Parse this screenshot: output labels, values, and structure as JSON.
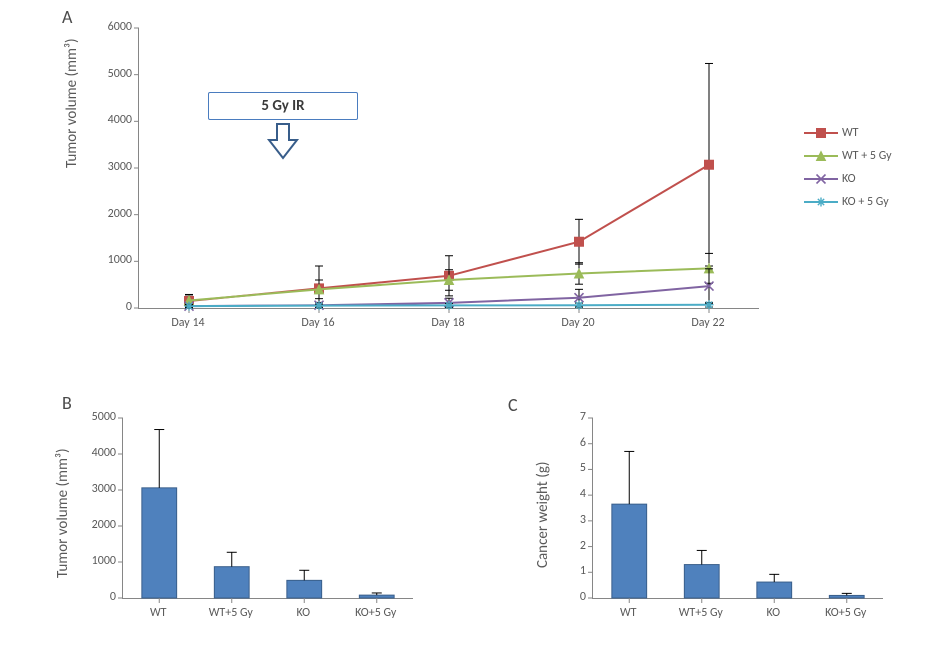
{
  "labels": {
    "panel_A": "A",
    "panel_B": "B",
    "panel_C": "C"
  },
  "annotation": {
    "text": "5 Gy IR",
    "arrow_outline": "#385d8a",
    "arrow_fill": "#ffffff"
  },
  "colors": {
    "axis": "#868686",
    "tick_text": "#595959",
    "bar_fill": "#4f81bd",
    "bar_border": "#3a5f8b",
    "error_bar": "#000000"
  },
  "chartA": {
    "type": "line",
    "ylabel": "Tumor volume (mm³)",
    "x_categories": [
      "Day 14",
      "Day 16",
      "Day 18",
      "Day 20",
      "Day 22"
    ],
    "ylim": [
      0,
      6000
    ],
    "ytick_step": 1000,
    "series": [
      {
        "name": "WT",
        "color": "#c0504d",
        "marker": "square-filled",
        "values": [
          150,
          420,
          690,
          1420,
          3070
        ],
        "err": [
          130,
          480,
          430,
          480,
          2170
        ]
      },
      {
        "name": "WT + 5 Gy",
        "color": "#9bbb59",
        "marker": "triangle-filled",
        "values": [
          160,
          400,
          600,
          740,
          850
        ],
        "err": [
          130,
          200,
          220,
          230,
          320
        ]
      },
      {
        "name": "KO",
        "color": "#8064a2",
        "marker": "x",
        "values": [
          40,
          60,
          110,
          220,
          470
        ],
        "err": [
          40,
          60,
          100,
          180,
          370
        ]
      },
      {
        "name": "KO + 5 Gy",
        "color": "#4bacc6",
        "marker": "star",
        "values": [
          40,
          50,
          55,
          60,
          70
        ],
        "err": [
          30,
          35,
          40,
          45,
          50
        ]
      }
    ]
  },
  "chartB": {
    "type": "bar",
    "ylabel": "Tumor volume (mm³)",
    "x_categories": [
      "WT",
      "WT+5 Gy",
      "KO",
      "KO+5 Gy"
    ],
    "ylim": [
      0,
      5000
    ],
    "ytick_step": 1000,
    "values": [
      3060,
      870,
      490,
      80
    ],
    "err": [
      1620,
      400,
      280,
      60
    ]
  },
  "chartC": {
    "type": "bar",
    "ylabel": "Cancer weight (g)",
    "x_categories": [
      "WT",
      "WT+5 Gy",
      "KO",
      "KO+5 Gy"
    ],
    "ylim": [
      0,
      7
    ],
    "ytick_step": 1,
    "values": [
      3.65,
      1.3,
      0.62,
      0.1
    ],
    "err": [
      2.05,
      0.55,
      0.3,
      0.08
    ]
  }
}
